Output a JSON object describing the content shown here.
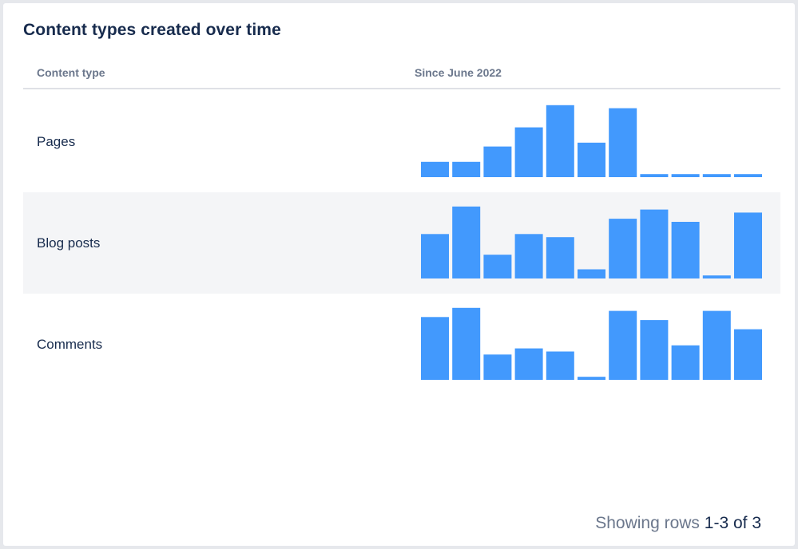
{
  "widget": {
    "title": "Content types created over time"
  },
  "table": {
    "columns": [
      "Content type",
      "Since June 2022"
    ],
    "rows": [
      {
        "label": "Pages"
      },
      {
        "label": "Blog posts"
      },
      {
        "label": "Comments"
      }
    ]
  },
  "footer": {
    "prefix": "Showing rows",
    "range": "1-3 of 3"
  },
  "chart_data": {
    "type": "bar",
    "series": [
      {
        "name": "Pages",
        "values": [
          20,
          20,
          40,
          65,
          94,
          45,
          90,
          4,
          4,
          4,
          4
        ]
      },
      {
        "name": "Blog posts",
        "values": [
          58,
          94,
          31,
          58,
          54,
          12,
          78,
          90,
          74,
          4,
          86
        ]
      },
      {
        "name": "Comments",
        "values": [
          82,
          94,
          33,
          41,
          37,
          4,
          90,
          78,
          45,
          90,
          66
        ]
      }
    ],
    "ylim": [
      0,
      100
    ],
    "grid": false,
    "bar_color": "#4299fd"
  }
}
